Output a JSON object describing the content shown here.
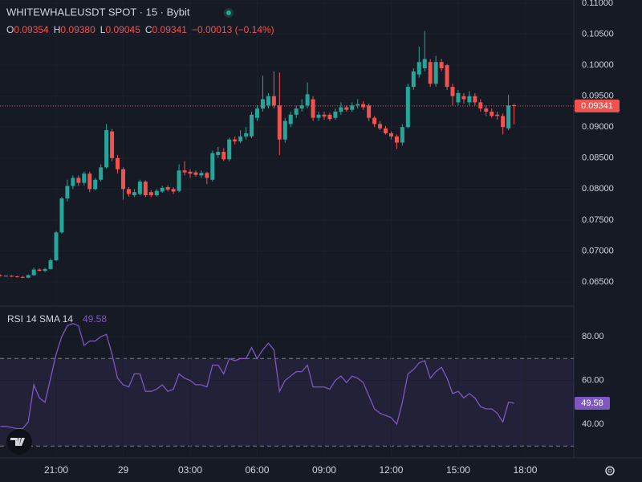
{
  "chart_data": [
    {
      "type": "candlestick",
      "title": "WHITEWHALEUSDT SPOT · 15 · Bybit",
      "ohlc_legend": [
        {
          "key": "O",
          "value": "0.09354"
        },
        {
          "key": "H",
          "value": "0.09380"
        },
        {
          "key": "L",
          "value": "0.09045"
        },
        {
          "key": "C",
          "value": "0.09341"
        }
      ],
      "change": "−0.00013 (−0.14%)",
      "up_color": "#26a69a",
      "down_color": "#ef5350",
      "open": [
        0.0661,
        0.066,
        0.066,
        0.0659,
        0.0658,
        0.0657,
        0.0661,
        0.067,
        0.0668,
        0.0671,
        0.0685,
        0.073,
        0.0785,
        0.0805,
        0.0818,
        0.081,
        0.0825,
        0.08,
        0.0815,
        0.0835,
        0.0893,
        0.085,
        0.0832,
        0.08,
        0.079,
        0.0792,
        0.0812,
        0.0795,
        0.079,
        0.0796,
        0.0803,
        0.08,
        0.0797,
        0.083,
        0.0828,
        0.0827,
        0.0822,
        0.0826,
        0.0815,
        0.0855,
        0.086,
        0.0848,
        0.088,
        0.0877,
        0.0885,
        0.0885,
        0.0915,
        0.093,
        0.0935,
        0.095,
        0.0935,
        0.088,
        0.0905,
        0.092,
        0.093,
        0.0935,
        0.0945,
        0.0915,
        0.092,
        0.092,
        0.0915,
        0.0925,
        0.0932,
        0.0928,
        0.0935,
        0.0937,
        0.0935,
        0.0915,
        0.0905,
        0.0898,
        0.089,
        0.0885,
        0.0875,
        0.09,
        0.0965,
        0.0985,
        0.0995,
        0.1005,
        0.097,
        0.1005,
        0.1,
        0.0965,
        0.094,
        0.095,
        0.094,
        0.095,
        0.094,
        0.093,
        0.0925,
        0.092,
        0.0918,
        0.0898,
        0.09354
      ],
      "high": [
        0.0662,
        0.0661,
        0.0661,
        0.066,
        0.066,
        0.0662,
        0.0673,
        0.0672,
        0.0673,
        0.0688,
        0.0732,
        0.0787,
        0.0815,
        0.0822,
        0.0822,
        0.0828,
        0.0828,
        0.0818,
        0.084,
        0.0905,
        0.0897,
        0.0855,
        0.0835,
        0.0803,
        0.08,
        0.0815,
        0.0814,
        0.0798,
        0.08,
        0.0805,
        0.0806,
        0.0803,
        0.084,
        0.0845,
        0.0832,
        0.083,
        0.083,
        0.0828,
        0.0862,
        0.0868,
        0.0866,
        0.0883,
        0.0885,
        0.0895,
        0.09,
        0.0925,
        0.0935,
        0.0983,
        0.0955,
        0.099,
        0.0988,
        0.0915,
        0.0925,
        0.0935,
        0.0945,
        0.0972,
        0.095,
        0.0925,
        0.0925,
        0.0923,
        0.093,
        0.094,
        0.0935,
        0.094,
        0.0945,
        0.0942,
        0.0938,
        0.0918,
        0.091,
        0.0902,
        0.0893,
        0.0888,
        0.0905,
        0.097,
        0.0995,
        0.103,
        0.1055,
        0.101,
        0.1015,
        0.101,
        0.1002,
        0.097,
        0.096,
        0.0955,
        0.0958,
        0.0955,
        0.0945,
        0.0935,
        0.093,
        0.0925,
        0.0922,
        0.0952,
        0.0938
      ],
      "low": [
        0.0659,
        0.0659,
        0.0658,
        0.0657,
        0.0656,
        0.0656,
        0.066,
        0.0667,
        0.0666,
        0.067,
        0.0684,
        0.0728,
        0.078,
        0.08,
        0.0805,
        0.0806,
        0.0795,
        0.0798,
        0.0812,
        0.0833,
        0.0845,
        0.0825,
        0.0783,
        0.0788,
        0.0787,
        0.079,
        0.0787,
        0.0787,
        0.0788,
        0.0794,
        0.0796,
        0.0792,
        0.0795,
        0.0822,
        0.0818,
        0.082,
        0.0818,
        0.0808,
        0.0812,
        0.085,
        0.0845,
        0.0845,
        0.0872,
        0.0874,
        0.088,
        0.0882,
        0.091,
        0.0925,
        0.093,
        0.093,
        0.0855,
        0.0875,
        0.09,
        0.0915,
        0.0925,
        0.093,
        0.091,
        0.091,
        0.0912,
        0.091,
        0.0912,
        0.092,
        0.0925,
        0.0925,
        0.093,
        0.0928,
        0.091,
        0.09,
        0.0895,
        0.0888,
        0.088,
        0.0865,
        0.087,
        0.0898,
        0.096,
        0.098,
        0.099,
        0.0965,
        0.0965,
        0.099,
        0.096,
        0.0935,
        0.0935,
        0.0938,
        0.0935,
        0.0935,
        0.0925,
        0.0918,
        0.0915,
        0.0912,
        0.0888,
        0.0895,
        0.09045
      ],
      "close": [
        0.066,
        0.066,
        0.0659,
        0.0658,
        0.0657,
        0.0661,
        0.067,
        0.0668,
        0.0671,
        0.0685,
        0.073,
        0.0785,
        0.0805,
        0.0818,
        0.081,
        0.0825,
        0.08,
        0.0815,
        0.0835,
        0.0895,
        0.085,
        0.0832,
        0.08,
        0.0792,
        0.0795,
        0.0812,
        0.079,
        0.079,
        0.0797,
        0.0802,
        0.0799,
        0.0796,
        0.083,
        0.0827,
        0.0825,
        0.0823,
        0.0826,
        0.0818,
        0.0858,
        0.086,
        0.0848,
        0.088,
        0.0877,
        0.0885,
        0.089,
        0.092,
        0.093,
        0.0945,
        0.095,
        0.0935,
        0.088,
        0.091,
        0.092,
        0.093,
        0.0935,
        0.0953,
        0.0915,
        0.092,
        0.0917,
        0.0913,
        0.0925,
        0.0932,
        0.0928,
        0.0935,
        0.0937,
        0.0932,
        0.0915,
        0.0905,
        0.0898,
        0.089,
        0.0885,
        0.0875,
        0.09,
        0.0965,
        0.099,
        0.1005,
        0.101,
        0.097,
        0.1005,
        0.0995,
        0.0965,
        0.095,
        0.0955,
        0.0945,
        0.095,
        0.094,
        0.093,
        0.0925,
        0.0918,
        0.0918,
        0.09,
        0.0935,
        0.09341
      ],
      "ylim": [
        0.06124,
        0.11052
      ],
      "yticks": [
        {
          "value": 0.065,
          "label": "0.06500"
        },
        {
          "value": 0.07,
          "label": "0.07000"
        },
        {
          "value": 0.075,
          "label": "0.07500"
        },
        {
          "value": 0.08,
          "label": "0.08000"
        },
        {
          "value": 0.085,
          "label": "0.08500"
        },
        {
          "value": 0.09,
          "label": "0.09000"
        },
        {
          "value": 0.095,
          "label": "0.09500"
        },
        {
          "value": 0.1,
          "label": "0.10000"
        },
        {
          "value": 0.105,
          "label": "0.10500"
        },
        {
          "value": 0.11,
          "label": "0.11000"
        }
      ],
      "xlim": [
        -0.06,
        102.7
      ],
      "xticks": [
        {
          "value": 10,
          "label": "21:00"
        },
        {
          "value": 22,
          "label": "29"
        },
        {
          "value": 34,
          "label": "03:00"
        },
        {
          "value": 46,
          "label": "06:00"
        },
        {
          "value": 58,
          "label": "09:00"
        },
        {
          "value": 70,
          "label": "12:00"
        },
        {
          "value": 82,
          "label": "15:00"
        },
        {
          "value": 94,
          "label": "18:00"
        }
      ]
    },
    {
      "type": "line",
      "title": "RSI 14 SMA 14",
      "color": "#7e57c2",
      "values": [
        39,
        39,
        38.5,
        38,
        38,
        41,
        58,
        52,
        50,
        61,
        72,
        80,
        85,
        86,
        85,
        76,
        78,
        78,
        80,
        81,
        72,
        61,
        58,
        57,
        63,
        63,
        55,
        55,
        56,
        58,
        55,
        56,
        63,
        61,
        60,
        58,
        58,
        57,
        67,
        67,
        63,
        70,
        69,
        70,
        70,
        75,
        70,
        74,
        77,
        74,
        55,
        60,
        62,
        64,
        64,
        67,
        57,
        57,
        57,
        56,
        60,
        62,
        59,
        62,
        61,
        59,
        53,
        47,
        45,
        44,
        43,
        40,
        50,
        63,
        65,
        68,
        69,
        61,
        64,
        66,
        61,
        54,
        55,
        52,
        54,
        52,
        48,
        47,
        47,
        45,
        41,
        50,
        49.58
      ],
      "bands": [
        30,
        70
      ],
      "ylim": [
        24.6,
        93.6
      ],
      "yticks": [
        {
          "value": 40,
          "label": "40.00"
        },
        {
          "value": 60,
          "label": "60.00"
        },
        {
          "value": 80,
          "label": "80.00"
        }
      ]
    }
  ]
}
